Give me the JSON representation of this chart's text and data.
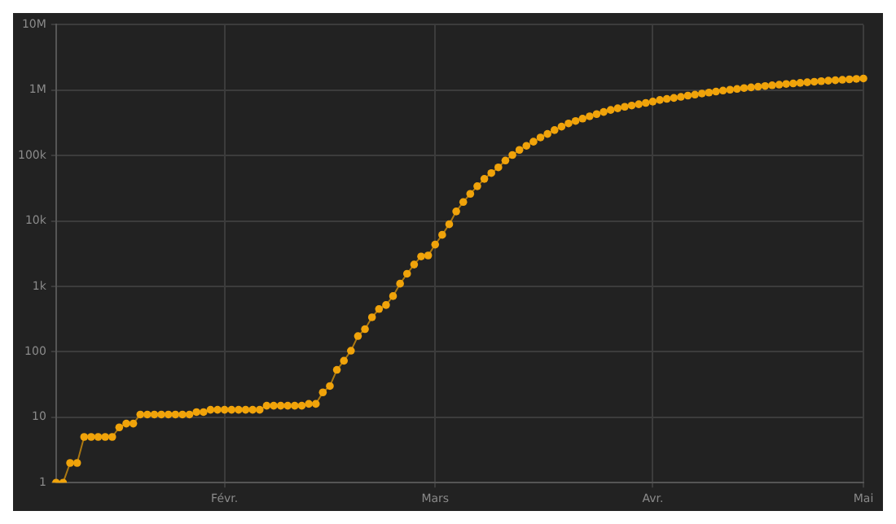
{
  "chart_data": {
    "type": "line",
    "categories": [
      null,
      null,
      null,
      null,
      null,
      null,
      null,
      null,
      null,
      null,
      null,
      null,
      null,
      null,
      null,
      null,
      null,
      null,
      null,
      null,
      null,
      null,
      null,
      null,
      "Févr.",
      null,
      null,
      null,
      null,
      null,
      null,
      null,
      null,
      null,
      null,
      null,
      null,
      null,
      null,
      null,
      null,
      null,
      null,
      null,
      null,
      null,
      null,
      null,
      null,
      null,
      null,
      null,
      null,
      null,
      "Mars",
      null,
      null,
      null,
      null,
      null,
      null,
      null,
      null,
      null,
      null,
      null,
      null,
      null,
      null,
      null,
      null,
      null,
      null,
      null,
      null,
      null,
      null,
      null,
      null,
      null,
      null,
      null,
      null,
      null,
      null,
      "Avr.",
      null,
      null,
      null,
      null,
      null,
      null,
      null,
      null,
      null,
      null,
      null,
      null,
      null,
      null,
      null,
      null,
      null,
      null,
      null,
      null,
      null,
      null,
      null,
      null,
      null,
      null,
      null,
      null,
      null,
      "Mai"
    ],
    "series": [
      {
        "color": "#f0a30a",
        "values": [
          1,
          1,
          2,
          2,
          5,
          5,
          5,
          5,
          5,
          7,
          8,
          8,
          11,
          11,
          11,
          11,
          11,
          11,
          11,
          11,
          12,
          12,
          13,
          13,
          13,
          13,
          13,
          13,
          13,
          13,
          15,
          15,
          15,
          15,
          15,
          15,
          16,
          16,
          24,
          30,
          53,
          73,
          104,
          174,
          222,
          337,
          451,
          519,
          711,
          1100,
          1560,
          2160,
          2870,
          2970,
          4360,
          6140,
          8900,
          14000,
          19500,
          26000,
          34000,
          44000,
          54000,
          66000,
          84000,
          102000,
          122000,
          141000,
          163000,
          189000,
          214000,
          245000,
          277000,
          310000,
          338000,
          367000,
          398000,
          430000,
          464000,
          498000,
          528000,
          557000,
          582000,
          609000,
          638000,
          669000,
          707000,
          735000,
          761000,
          789000,
          825000,
          854000,
          888000,
          919000,
          951000,
          986000,
          1016000,
          1044000,
          1077000,
          1102000,
          1129000,
          1158000,
          1188000,
          1214000,
          1244000,
          1267000,
          1291000,
          1318000,
          1346000,
          1373000,
          1397000,
          1417000,
          1440000,
          1464000,
          1487000,
          1508000
        ]
      }
    ],
    "ylim": [
      1,
      10000000
    ],
    "yticks": [
      {
        "value": 1,
        "label": "1"
      },
      {
        "value": 10,
        "label": "10"
      },
      {
        "value": 100,
        "label": "100"
      },
      {
        "value": 1000,
        "label": "1k"
      },
      {
        "value": 10000,
        "label": "10k"
      },
      {
        "value": 100000,
        "label": "100k"
      },
      {
        "value": 1000000,
        "label": "1M"
      },
      {
        "value": 10000000,
        "label": "10M"
      }
    ],
    "log": "y",
    "grid": true,
    "marker": "circle",
    "line_style": "solid",
    "legend": false
  }
}
